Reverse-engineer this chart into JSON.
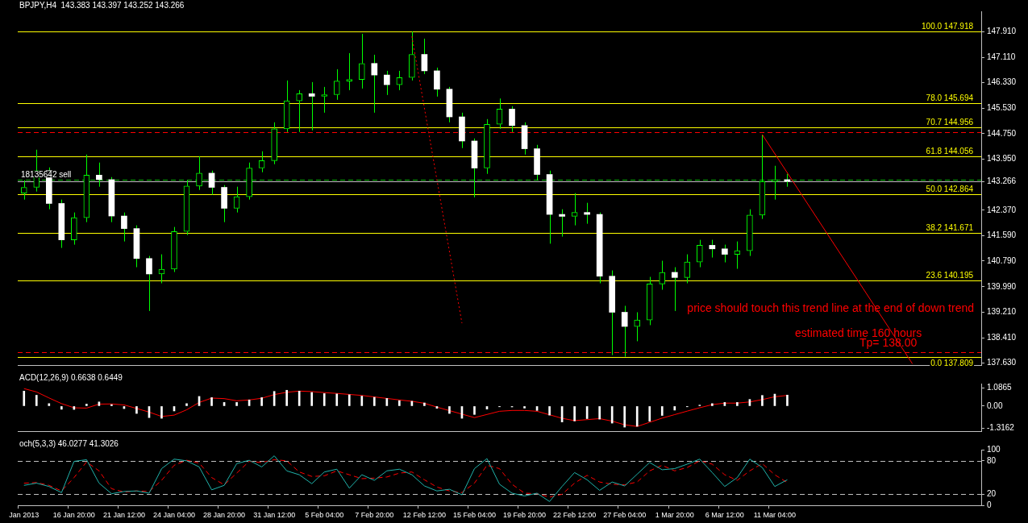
{
  "chart_data": [
    {
      "type": "candlestick",
      "title": "BPJPY,H4  143.383 143.397 143.252 143.266",
      "color": "#00ff00",
      "marker": "none",
      "tick_labels": "y",
      "categories": [
        null,
        null,
        null,
        null,
        null,
        null,
        null,
        null,
        null,
        null,
        null,
        null,
        null,
        null,
        null,
        null,
        null,
        null,
        null,
        null,
        null,
        null,
        null,
        null,
        null,
        null,
        null,
        null,
        null,
        null,
        null,
        null,
        null,
        null,
        null,
        null,
        null,
        null,
        null,
        null,
        null,
        null,
        null,
        null,
        null,
        null,
        null,
        null,
        null,
        null,
        null,
        null,
        null,
        null,
        null,
        null,
        null,
        null,
        null,
        null,
        null,
        null,
        null,
        null,
        null,
        null,
        null,
        null,
        null,
        null,
        null,
        null,
        null,
        null,
        null,
        null,
        null
      ],
      "colors": [
        "#00ff00",
        "#00ff00",
        "#ffffff",
        "#ffffff",
        "#00ff00",
        "#00ff00",
        "#ffffff",
        "#ffffff",
        "#ffffff",
        "#ffffff",
        "#ffffff",
        "#00ff00",
        "#00ff00",
        "#00ff00",
        "#00ff00",
        "#ffffff",
        "#ffffff",
        "#00ff00",
        "#00ff00",
        "#00ff00",
        "#00ff00",
        "#00ff00",
        "#00ff00",
        "#ffffff",
        "#00ff00",
        "#00ff00",
        "#00ff00",
        "#00ff00",
        "#ffffff",
        "#ffffff",
        "#00ff00",
        "#00ff00",
        "#ffffff",
        "#ffffff",
        "#ffffff",
        "#ffffff",
        "#ffffff",
        "#00ff00",
        "#00ff00",
        "#ffffff",
        "#ffffff",
        "#ffffff",
        "#ffffff",
        "#ffffff",
        "#00ff00",
        "#ffffff",
        "#ffffff",
        "#ffffff",
        "#ffffff",
        "#00ff00",
        "#00ff00",
        "#00ff00",
        "#ffffff",
        "#00ff00",
        "#00ff00",
        "#ffffff",
        "#ffffff",
        "#00ff00",
        "#00ff00",
        "#00ff00",
        "#00ff00",
        "#ffffff",
        null,
        null,
        null,
        null,
        null,
        null,
        null,
        null,
        null,
        null,
        null,
        null,
        null,
        null,
        null
      ],
      "ohlc": [
        [
          142.9,
          143.3,
          142.7,
          143.08
        ],
        [
          143.08,
          144.25,
          142.95,
          143.6
        ],
        [
          143.6,
          143.7,
          142.4,
          142.58
        ],
        [
          142.58,
          142.7,
          141.2,
          141.45
        ],
        [
          141.45,
          142.3,
          141.3,
          142.14
        ],
        [
          142.14,
          144.1,
          142.0,
          143.46
        ],
        [
          143.46,
          143.85,
          143.1,
          143.32
        ],
        [
          143.32,
          143.4,
          142.0,
          142.19
        ],
        [
          142.19,
          142.3,
          141.4,
          141.8
        ],
        [
          141.8,
          141.9,
          140.6,
          140.87
        ],
        [
          140.87,
          140.95,
          139.24,
          140.39
        ],
        [
          140.39,
          141.0,
          140.1,
          140.54
        ],
        [
          140.54,
          141.85,
          140.45,
          141.71
        ],
        [
          141.71,
          143.3,
          141.6,
          143.12
        ],
        [
          143.12,
          144.05,
          143.0,
          143.52
        ],
        [
          143.52,
          143.6,
          142.85,
          143.08
        ],
        [
          143.08,
          143.15,
          142.0,
          142.43
        ],
        [
          142.43,
          143.1,
          142.3,
          142.79
        ],
        [
          142.79,
          143.85,
          142.7,
          143.68
        ],
        [
          143.68,
          144.2,
          143.55,
          143.91
        ],
        [
          143.91,
          145.1,
          143.8,
          144.9
        ],
        [
          144.9,
          146.4,
          144.8,
          145.77
        ],
        [
          145.77,
          146.1,
          144.8,
          145.99
        ],
        [
          145.99,
          146.35,
          144.85,
          145.91
        ],
        [
          145.91,
          146.2,
          145.4,
          145.96
        ],
        [
          145.96,
          146.75,
          145.8,
          146.38
        ],
        [
          146.38,
          147.25,
          146.1,
          146.43
        ],
        [
          146.43,
          147.85,
          146.15,
          146.93
        ],
        [
          146.93,
          147.2,
          145.4,
          146.57
        ],
        [
          146.57,
          146.7,
          145.95,
          146.27
        ],
        [
          146.27,
          146.7,
          146.1,
          146.49
        ],
        [
          146.49,
          147.92,
          146.4,
          147.21
        ],
        [
          147.21,
          147.7,
          146.6,
          146.7
        ],
        [
          146.7,
          146.8,
          145.9,
          146.13
        ],
        [
          146.13,
          146.2,
          145.1,
          145.27
        ],
        [
          145.27,
          145.4,
          144.3,
          144.52
        ],
        [
          144.52,
          144.6,
          142.77,
          143.68
        ],
        [
          143.68,
          145.2,
          143.5,
          145.04
        ],
        [
          145.04,
          145.84,
          144.9,
          145.51
        ],
        [
          145.51,
          145.6,
          144.8,
          145.0
        ],
        [
          145.0,
          145.1,
          144.1,
          144.28
        ],
        [
          144.28,
          144.4,
          143.3,
          143.48
        ],
        [
          143.48,
          143.6,
          141.33,
          142.24
        ],
        [
          142.24,
          142.4,
          141.55,
          142.18
        ],
        [
          142.18,
          142.9,
          141.9,
          142.3
        ],
        [
          142.3,
          142.6,
          141.95,
          142.24
        ],
        [
          142.24,
          142.3,
          140.1,
          140.32
        ],
        [
          140.32,
          140.5,
          137.87,
          139.2
        ],
        [
          139.2,
          139.4,
          137.82,
          138.76
        ],
        [
          138.76,
          139.2,
          138.3,
          138.96
        ],
        [
          138.96,
          140.3,
          138.8,
          140.08
        ],
        [
          140.08,
          140.8,
          139.9,
          140.44
        ],
        [
          140.44,
          140.6,
          139.24,
          140.28
        ],
        [
          140.28,
          141.0,
          140.1,
          140.76
        ],
        [
          140.76,
          141.45,
          140.6,
          141.28
        ],
        [
          141.28,
          141.45,
          140.9,
          141.17
        ],
        [
          141.17,
          141.3,
          140.75,
          141.0
        ],
        [
          141.0,
          141.4,
          140.55,
          141.11
        ],
        [
          141.11,
          142.4,
          140.95,
          142.22
        ],
        [
          142.22,
          144.72,
          142.1,
          143.26
        ],
        [
          143.26,
          143.75,
          142.7,
          143.32
        ],
        [
          143.32,
          143.5,
          143.1,
          143.27
        ],
        null,
        null,
        null,
        null,
        null,
        null,
        null,
        null,
        null,
        null,
        null,
        null,
        null,
        null,
        null
      ],
      "series": [
        {
          "type": "line",
          "color": "#ff0000",
          "line_style": "dotted",
          "values": [
            null,
            null,
            null,
            null,
            null,
            null,
            null,
            null,
            null,
            null,
            null,
            null,
            null,
            null,
            null,
            null,
            null,
            null,
            null,
            null,
            null,
            null,
            null,
            null,
            null,
            null,
            null,
            null,
            null,
            null,
            null,
            147.77,
            null,
            null,
            null,
            138.86,
            null,
            null,
            null,
            null,
            null,
            null,
            null,
            null,
            null,
            null,
            null,
            null,
            null,
            null,
            null,
            null,
            null,
            null,
            null,
            null,
            null,
            null,
            null,
            null,
            null,
            null,
            null,
            null,
            null,
            null,
            null,
            null,
            null,
            null,
            null,
            null,
            null,
            null,
            null,
            null,
            null
          ]
        },
        {
          "type": "line",
          "color": "#ff0000",
          "line_style": "solid",
          "values": [
            null,
            null,
            null,
            null,
            null,
            null,
            null,
            null,
            null,
            null,
            null,
            null,
            null,
            null,
            null,
            null,
            null,
            null,
            null,
            null,
            null,
            null,
            null,
            null,
            null,
            null,
            null,
            null,
            null,
            null,
            null,
            null,
            null,
            null,
            null,
            null,
            null,
            null,
            null,
            null,
            null,
            null,
            null,
            null,
            null,
            null,
            null,
            null,
            null,
            null,
            null,
            null,
            null,
            null,
            null,
            null,
            null,
            null,
            null,
            144.72,
            null,
            null,
            null,
            null,
            null,
            null,
            null,
            null,
            null,
            null,
            null,
            137.6,
            null,
            null,
            null,
            null,
            null
          ]
        }
      ],
      "ylim": [
        137.56,
        148.55
      ],
      "yticks": [
        {
          "value": 137.63,
          "label": "137.630"
        },
        {
          "value": 138.41,
          "label": "138.410"
        },
        {
          "value": 139.21,
          "label": "139.210"
        },
        {
          "value": 139.99,
          "label": "139.990"
        },
        {
          "value": 140.79,
          "label": "140.790"
        },
        {
          "value": 141.59,
          "label": "141.590"
        },
        {
          "value": 142.37,
          "label": "142.370"
        },
        {
          "value": 143.266,
          "label": "143.266"
        },
        {
          "value": 143.95,
          "label": "143.950"
        },
        {
          "value": 144.75,
          "label": "144.750"
        },
        {
          "value": 145.53,
          "label": "145.530"
        },
        {
          "value": 146.33,
          "label": "146.330"
        },
        {
          "value": 147.11,
          "label": "147.110"
        },
        {
          "value": 147.91,
          "label": "147.910"
        }
      ],
      "ref_lines": [
        {
          "axis": "y",
          "value": 147.918,
          "label": "100.0 147.918",
          "color": "#ffff00",
          "line_style": "solid"
        },
        {
          "axis": "y",
          "value": 145.694,
          "label": "78.0 145.694",
          "color": "#ffff00",
          "line_style": "solid"
        },
        {
          "axis": "y",
          "value": 144.956,
          "label": "70.7 144.956",
          "color": "#ffff00",
          "line_style": "solid"
        },
        {
          "axis": "y",
          "value": 144.056,
          "label": "61.8 144.056",
          "color": "#ffff00",
          "line_style": "solid"
        },
        {
          "axis": "y",
          "value": 142.864,
          "label": "50.0 142.864",
          "color": "#ffff00",
          "line_style": "solid"
        },
        {
          "axis": "y",
          "value": 141.671,
          "label": "38.2 141.671",
          "color": "#ffff00",
          "line_style": "solid"
        },
        {
          "axis": "y",
          "value": 140.195,
          "label": "23.6 140.195",
          "color": "#ffff00",
          "line_style": "solid"
        },
        {
          "axis": "y",
          "value": 137.809,
          "label": "0.0 137.809",
          "color": "#ffff00",
          "line_style": "solid"
        },
        {
          "axis": "y",
          "value": 144.79,
          "color": "#ff0000",
          "line_style": "dashed"
        },
        {
          "axis": "y",
          "value": 137.97,
          "color": "#ff0000",
          "line_style": "dashed"
        },
        {
          "axis": "y",
          "value": 143.31,
          "label": "18135642 sell",
          "color": "#00c000",
          "line_style": "dashed"
        },
        {
          "axis": "y",
          "value": 143.266,
          "color": "#c0c0c0",
          "line_style": "solid"
        }
      ],
      "annotations": [
        "price should touch this trend line at the end of down trend",
        "estimated time 160 hours",
        "Tp= 138.00"
      ]
    },
    {
      "type": "bar",
      "title": "ACD(12,26,9) 0.6638 0.6449",
      "marker": "none",
      "tick_labels": "y",
      "categories": [
        null,
        null,
        null,
        null,
        null,
        null,
        null,
        null,
        null,
        null,
        null,
        null,
        null,
        null,
        null,
        null,
        null,
        null,
        null,
        null,
        null,
        null,
        null,
        null,
        null,
        null,
        null,
        null,
        null,
        null,
        null,
        null,
        null,
        null,
        null,
        null,
        null,
        null,
        null,
        null,
        null,
        null,
        null,
        null,
        null,
        null,
        null,
        null,
        null,
        null,
        null,
        null,
        null,
        null,
        null,
        null,
        null,
        null,
        null,
        null,
        null,
        null,
        null,
        null,
        null,
        null,
        null,
        null,
        null,
        null,
        null,
        null,
        null,
        null,
        null,
        null,
        null
      ],
      "series": [
        {
          "type": "bar",
          "color": "#ffffff",
          "values": [
            0.9,
            0.65,
            0.15,
            -0.19,
            -0.2,
            0.12,
            0.25,
            0.09,
            -0.15,
            -0.44,
            -0.69,
            -0.73,
            -0.29,
            0.15,
            0.58,
            0.51,
            0.22,
            0.22,
            0.37,
            0.51,
            0.88,
            0.95,
            0.9,
            0.82,
            0.75,
            0.73,
            0.68,
            0.6,
            0.53,
            0.46,
            0.33,
            0.29,
            0.19,
            -0.13,
            -0.44,
            -0.73,
            -0.5,
            -0.18,
            -0.04,
            -0.05,
            -0.12,
            -0.26,
            -0.54,
            -0.95,
            -0.89,
            -0.75,
            -0.78,
            -1.02,
            -1.26,
            -1.21,
            -0.91,
            -0.56,
            -0.24,
            -0.04,
            0.06,
            0.15,
            0.22,
            0.22,
            0.4,
            0.64,
            0.72,
            0.66,
            null,
            null,
            null,
            null,
            null,
            null,
            null,
            null,
            null,
            null,
            null,
            null,
            null,
            null,
            null
          ]
        },
        {
          "type": "line",
          "color": "#ff0000",
          "values": [
            1.05,
            0.85,
            0.49,
            0.15,
            -0.1,
            -0.12,
            0.12,
            0.13,
            0.07,
            -0.14,
            -0.36,
            -0.62,
            -0.54,
            -0.22,
            0.22,
            0.48,
            0.45,
            0.32,
            0.37,
            0.47,
            0.69,
            0.83,
            0.9,
            0.87,
            0.81,
            0.76,
            0.7,
            0.64,
            0.55,
            0.46,
            0.37,
            0.29,
            0.17,
            -0.06,
            -0.27,
            -0.48,
            -0.69,
            -0.5,
            -0.31,
            -0.26,
            -0.26,
            -0.31,
            -0.52,
            -0.73,
            -0.87,
            -0.81,
            -0.75,
            -0.9,
            -1.12,
            -1.22,
            -0.97,
            -0.72,
            -0.51,
            -0.3,
            -0.1,
            0.09,
            0.18,
            0.18,
            0.25,
            0.39,
            0.56,
            0.64,
            null,
            null,
            null,
            null,
            null,
            null,
            null,
            null,
            null,
            null,
            null,
            null,
            null,
            null,
            null
          ]
        }
      ],
      "ylim": [
        -1.5,
        1.35
      ],
      "yticks": [
        {
          "value": -1.3162,
          "label": "-1.3162"
        },
        {
          "value": 0,
          "label": "0.00"
        },
        {
          "value": 1.0865,
          "label": "1.0865"
        }
      ]
    },
    {
      "type": "line",
      "title": "och(5,3,3) 46.0277 41.3026",
      "marker": "none",
      "categories": [
        "Jan 2013",
        null,
        null,
        null,
        "16 Jan 20:00",
        null,
        null,
        null,
        "21 Jan 12:00",
        null,
        null,
        null,
        "24 Jan 04:00",
        null,
        null,
        null,
        "28 Jan 20:00",
        null,
        null,
        null,
        "31 Jan 12:00",
        null,
        null,
        null,
        "5 Feb 04:00",
        null,
        null,
        null,
        "7 Feb 20:00",
        null,
        null,
        null,
        "12 Feb 12:00",
        null,
        null,
        null,
        "15 Feb 04:00",
        null,
        null,
        null,
        "19 Feb 20:00",
        null,
        null,
        null,
        "22 Feb 12:00",
        null,
        null,
        null,
        "27 Feb 04:00",
        null,
        null,
        null,
        "1 Mar 20:00",
        null,
        null,
        null,
        "6 Mar 12:00",
        null,
        null,
        null,
        "11 Mar 04:00",
        null,
        null,
        null,
        null,
        null,
        null,
        null,
        null,
        null,
        null,
        null,
        null,
        null,
        null,
        null,
        null
      ],
      "series": [
        {
          "type": "line",
          "color": "#20b2aa",
          "line_style": "solid",
          "values": [
            36,
            40,
            34,
            23,
            79,
            82,
            40,
            21,
            25,
            26,
            22,
            66,
            83,
            80,
            69,
            28,
            36,
            75,
            81,
            69,
            89,
            62,
            55,
            39,
            60,
            65,
            31,
            55,
            45,
            62,
            65,
            55,
            35,
            26,
            29,
            19,
            66,
            84,
            38,
            22,
            17,
            22,
            7,
            34,
            59,
            46,
            27,
            42,
            35,
            56,
            77,
            64,
            66,
            74,
            83,
            59,
            34,
            50,
            83,
            68,
            34,
            46,
            null,
            null,
            null,
            null,
            null,
            null,
            null,
            null,
            null,
            null,
            null,
            null,
            null,
            null,
            null
          ]
        },
        {
          "type": "line",
          "color": "#ff0000",
          "line_style": "dashed",
          "values": [
            40,
            41,
            36,
            26,
            50,
            78,
            62,
            30,
            24,
            26,
            25,
            45,
            72,
            81,
            76,
            50,
            37,
            58,
            79,
            77,
            82,
            80,
            60,
            52,
            53,
            62,
            55,
            48,
            49,
            51,
            58,
            60,
            46,
            33,
            26,
            23,
            40,
            72,
            66,
            38,
            22,
            21,
            15,
            20,
            40,
            54,
            42,
            38,
            37,
            42,
            62,
            72,
            62,
            68,
            80,
            74,
            55,
            45,
            62,
            75,
            55,
            41,
            null,
            null,
            null,
            null,
            null,
            null,
            null,
            null,
            null,
            null,
            null,
            null,
            null,
            null,
            null
          ]
        }
      ],
      "ylim": [
        0,
        100
      ],
      "yticks": [
        0,
        20,
        80,
        100
      ],
      "ref_lines": [
        {
          "axis": "y",
          "value": 80,
          "color": "#c0c0c0",
          "line_style": "dashed"
        },
        {
          "axis": "y",
          "value": 20,
          "color": "#c0c0c0",
          "line_style": "dashed"
        }
      ]
    }
  ]
}
